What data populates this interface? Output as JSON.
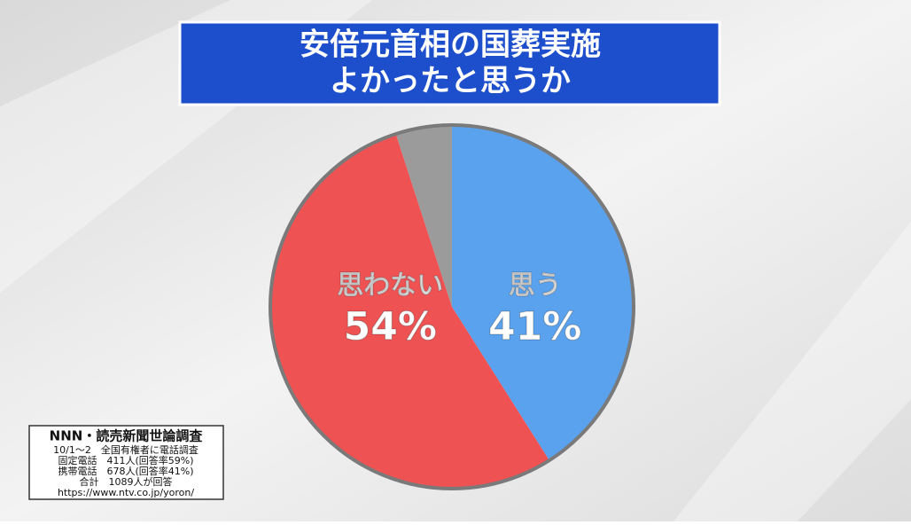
{
  "chart_data": {
    "type": "pie",
    "title": [
      "安倍元首相の国葬実施",
      "よかったと思うか"
    ],
    "categories": [
      "思う",
      "思わない",
      null
    ],
    "values": [
      41,
      54,
      5
    ],
    "value_labels": [
      "41%",
      "54%",
      null
    ],
    "colors": [
      "#5aa2ee",
      "#ee5253",
      "#9b9b9b"
    ],
    "source": [
      "NNN・読売新聞世論調査",
      "10/1〜2　全国有権者に電話調査",
      "固定電話　411人(回答率59%)",
      "携帯電話　678人(回答率41%)",
      "合計　1089人が回答",
      "https://www.ntv.co.jp/yoron/"
    ]
  }
}
